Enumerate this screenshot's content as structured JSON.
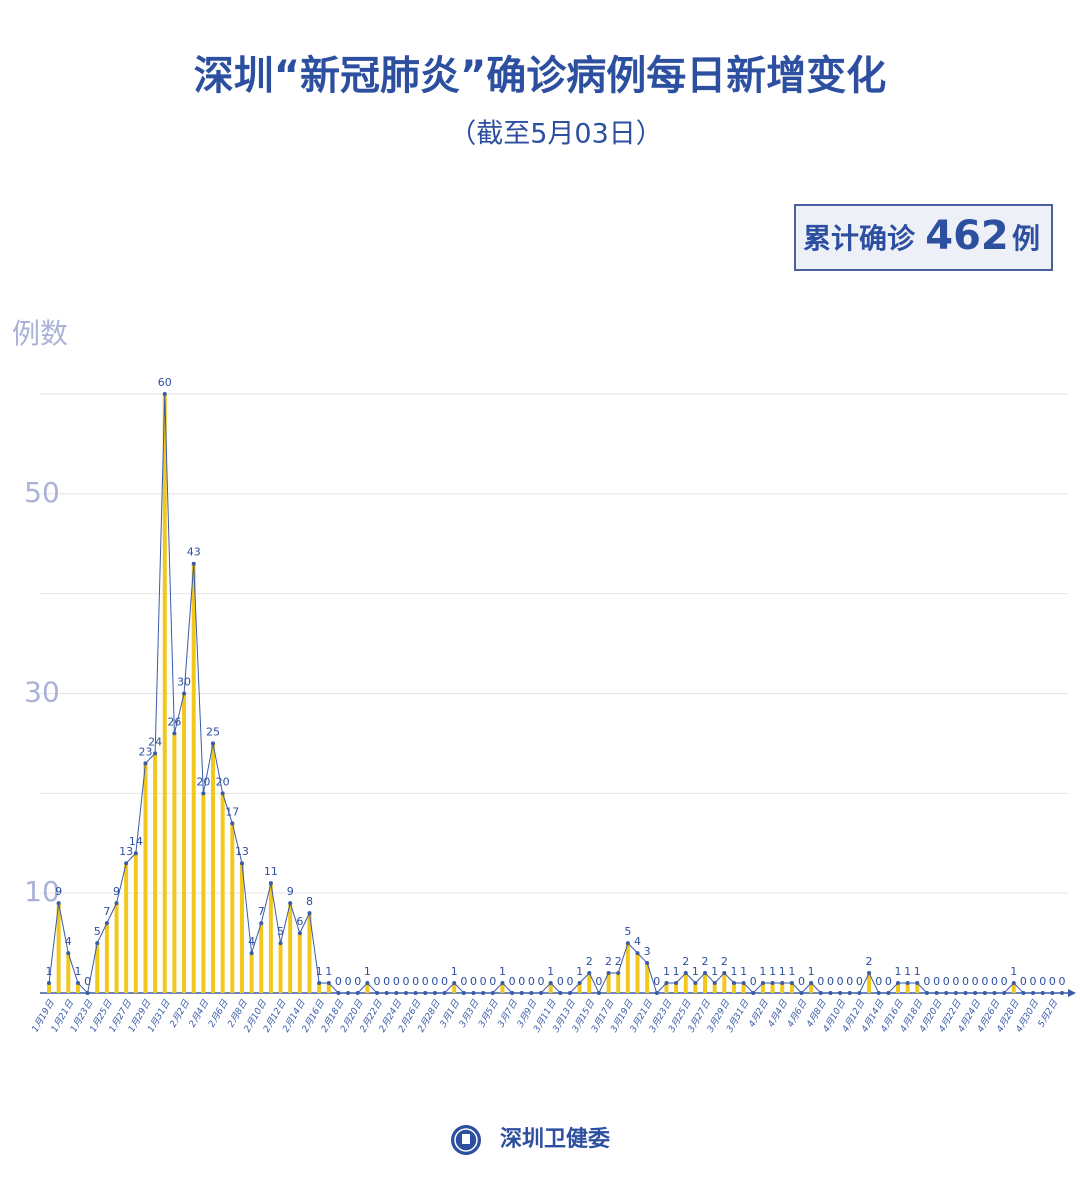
{
  "header": {
    "title": "深圳“新冠肺炎”确诊病例每日新增变化",
    "subtitle": "（截至5月03日）",
    "total_prefix": "累计确诊",
    "total": 462,
    "total_suffix": "例"
  },
  "footer": {
    "org": "深圳卫健委"
  },
  "chart_data": {
    "type": "bar-line",
    "y_label": "例数",
    "categories": [
      "1月19日",
      null,
      "1月21日",
      null,
      "1月23日",
      null,
      "1月25日",
      null,
      "1月27日",
      null,
      "1月29日",
      null,
      "1月31日",
      null,
      "2月2日",
      null,
      "2月4日",
      null,
      "2月6日",
      null,
      "2月8日",
      null,
      "2月10日",
      null,
      "2月12日",
      null,
      "2月14日",
      null,
      "2月16日",
      null,
      "2月18日",
      null,
      "2月20日",
      null,
      "2月22日",
      null,
      "2月24日",
      null,
      "2月26日",
      null,
      "2月28日",
      null,
      "3月1日",
      null,
      "3月3日",
      null,
      "3月5日",
      null,
      "3月7日",
      null,
      "3月9日",
      null,
      "3月11日",
      null,
      "3月13日",
      null,
      "3月15日",
      null,
      "3月17日",
      null,
      "3月19日",
      null,
      "3月21日",
      null,
      "3月23日",
      null,
      "3月25日",
      null,
      "3月27日",
      null,
      "3月29日",
      null,
      "3月31日",
      null,
      "4月2日",
      null,
      "4月4日",
      null,
      "4月6日",
      null,
      "4月8日",
      null,
      "4月10日",
      null,
      "4月12日",
      null,
      "4月14日",
      null,
      "4月16日",
      null,
      "4月18日",
      null,
      "4月20日",
      null,
      "4月22日",
      null,
      "4月24日",
      null,
      "4月26日",
      null,
      "4月28日",
      null,
      "4月30日",
      null,
      "5月2日",
      null
    ],
    "values": [
      1,
      9,
      4,
      1,
      0,
      5,
      7,
      9,
      13,
      14,
      23,
      24,
      60,
      26,
      30,
      43,
      20,
      25,
      20,
      17,
      13,
      4,
      7,
      11,
      5,
      9,
      6,
      8,
      1,
      1,
      0,
      0,
      0,
      1,
      0,
      0,
      0,
      0,
      0,
      0,
      0,
      0,
      1,
      0,
      0,
      0,
      0,
      1,
      0,
      0,
      0,
      0,
      1,
      0,
      0,
      1,
      2,
      0,
      2,
      2,
      5,
      4,
      3,
      0,
      1,
      1,
      2,
      1,
      2,
      1,
      2,
      1,
      1,
      0,
      1,
      1,
      1,
      1,
      0,
      1,
      0,
      0,
      0,
      0,
      0,
      2,
      0,
      0,
      1,
      1,
      1,
      0,
      0,
      0,
      0,
      0,
      0,
      0,
      0,
      0,
      1,
      0,
      0,
      0,
      0,
      0
    ],
    "bar_color": "#f2c81c",
    "line_color": "#3a5ba8",
    "ylim": [
      0,
      60
    ],
    "yticks": [
      10,
      30,
      50
    ],
    "minor_yticks": [
      20,
      40,
      60
    ],
    "grid": true
  }
}
